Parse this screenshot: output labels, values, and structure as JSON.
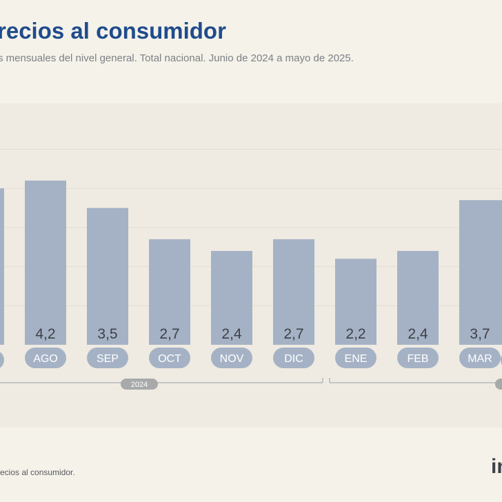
{
  "header": {
    "title": "recios al consumidor",
    "subtitle": "s mensuales del nivel general. Total nacional. Junio de 2024 a mayo de 2025."
  },
  "footer": {
    "source": "ecios al consumidor.",
    "logo_text": "in"
  },
  "colors": {
    "bar": "#a5b2c5",
    "label_pill": "#a5b2c5",
    "value_text": "#3d4148",
    "title": "#1f4c8c"
  },
  "chart_data": {
    "type": "bar",
    "categories": [
      "AGO",
      "SEP",
      "OCT",
      "NOV",
      "DIC",
      "ENE",
      "FEB",
      "MAR"
    ],
    "values": [
      4.2,
      3.5,
      2.7,
      2.4,
      2.7,
      2.2,
      2.4,
      3.7
    ],
    "value_labels": [
      "4,2",
      "3,5",
      "2,7",
      "2,4",
      "2,7",
      "2,2",
      "2,4",
      "3,7"
    ],
    "partial_bars": [
      {
        "position": "left-edge",
        "value": 4.0
      },
      {
        "position": "right-edge",
        "value": 3.7
      }
    ],
    "year_labels": [
      {
        "label": "2024",
        "span": [
          "JUN",
          "DIC"
        ]
      }
    ],
    "ylim": [
      0,
      5.5
    ],
    "grid": true,
    "xlabel": "",
    "ylabel": ""
  }
}
